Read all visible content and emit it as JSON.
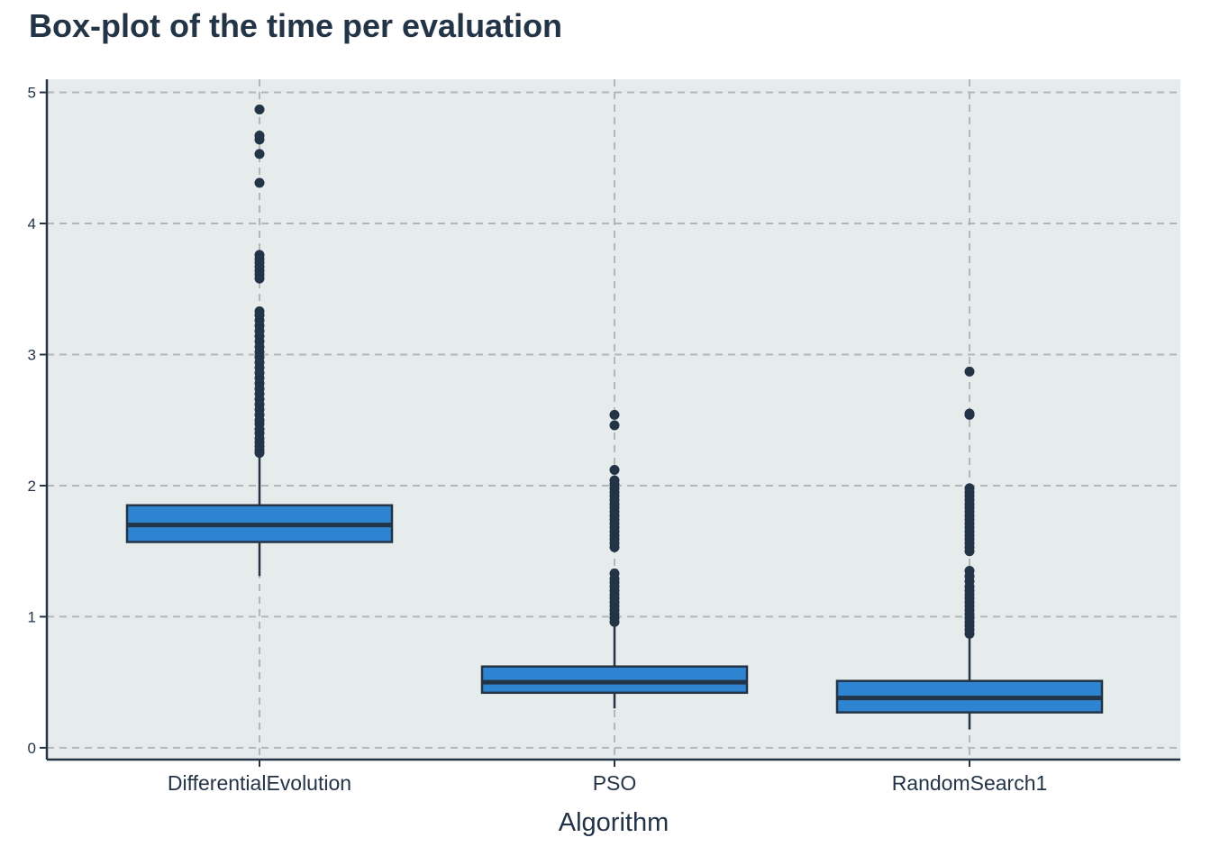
{
  "chart_data": {
    "type": "box",
    "title": "Box-plot of the time per evaluation",
    "xlabel": "Algorithm",
    "ylabel": "",
    "ylim": [
      -0.09,
      5.1
    ],
    "yticks": [
      0,
      1,
      2,
      3,
      4,
      5
    ],
    "grid": true,
    "colors": {
      "panel": "#e6ecec",
      "box_fill": "#2e84d0",
      "stroke": "#243447",
      "grid": "#b3b7ba"
    },
    "categories": [
      "DifferentialEvolution",
      "PSO",
      "RandomSearch1"
    ],
    "boxes": [
      {
        "category": "DifferentialEvolution",
        "whisker_low": 1.31,
        "q1": 1.57,
        "median": 1.7,
        "q3": 1.85,
        "whisker_high": 2.24,
        "outliers": [
          2.25,
          2.27,
          2.3,
          2.33,
          2.36,
          2.4,
          2.43,
          2.47,
          2.5,
          2.54,
          2.58,
          2.62,
          2.66,
          2.7,
          2.74,
          2.78,
          2.82,
          2.86,
          2.9,
          2.94,
          2.98,
          3.02,
          3.06,
          3.1,
          3.14,
          3.18,
          3.22,
          3.26,
          3.3,
          3.33,
          3.58,
          3.61,
          3.64,
          3.67,
          3.7,
          3.73,
          3.76,
          4.31,
          4.53,
          4.64,
          4.67,
          4.87
        ]
      },
      {
        "category": "PSO",
        "whisker_low": 0.3,
        "q1": 0.42,
        "median": 0.5,
        "q3": 0.62,
        "whisker_high": 0.95,
        "outliers": [
          0.96,
          0.99,
          1.02,
          1.05,
          1.08,
          1.11,
          1.14,
          1.17,
          1.2,
          1.23,
          1.26,
          1.29,
          1.33,
          1.53,
          1.56,
          1.59,
          1.62,
          1.65,
          1.68,
          1.71,
          1.74,
          1.77,
          1.8,
          1.83,
          1.86,
          1.89,
          1.92,
          1.95,
          1.98,
          2.01,
          2.04,
          2.12,
          2.46,
          2.54
        ]
      },
      {
        "category": "RandomSearch1",
        "whisker_low": 0.14,
        "q1": 0.27,
        "median": 0.38,
        "q3": 0.51,
        "whisker_high": 0.86,
        "outliers": [
          0.87,
          0.9,
          0.93,
          0.96,
          0.99,
          1.02,
          1.05,
          1.08,
          1.11,
          1.14,
          1.17,
          1.2,
          1.23,
          1.27,
          1.31,
          1.35,
          1.5,
          1.53,
          1.56,
          1.59,
          1.62,
          1.65,
          1.68,
          1.71,
          1.74,
          1.77,
          1.8,
          1.83,
          1.86,
          1.89,
          1.92,
          1.95,
          1.98,
          2.54,
          2.55,
          2.87
        ]
      }
    ]
  }
}
